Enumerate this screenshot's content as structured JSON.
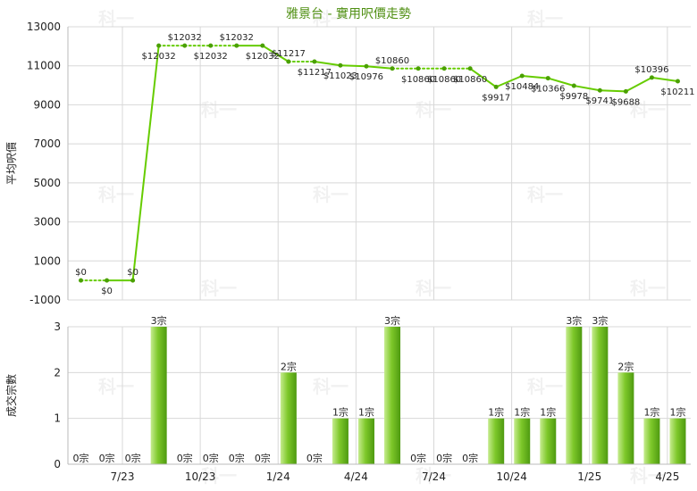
{
  "chart_data": [
    {
      "type": "line",
      "title": "雅景台 - 實用呎價走勢",
      "ylabel": "平均呎價",
      "ylim": [
        -1000,
        13000
      ],
      "yticks": [
        -1000,
        1000,
        3000,
        5000,
        7000,
        9000,
        11000,
        13000
      ],
      "currency_prefix": "$",
      "x_tick_labels": [
        "7/23",
        "10/23",
        "1/24",
        "4/24",
        "7/24",
        "10/24",
        "1/25",
        "4/25"
      ],
      "series": [
        {
          "values": [
            0,
            0,
            0,
            12032,
            12032,
            12032,
            12032,
            12032,
            11217,
            11217,
            11023,
            10976,
            10860,
            10860,
            10860,
            10860,
            9917,
            10484,
            10366,
            9978,
            9741,
            9688,
            10396,
            10211
          ]
        }
      ],
      "carried_forward": [
        false,
        true,
        false,
        false,
        true,
        true,
        true,
        false,
        false,
        true,
        false,
        false,
        false,
        true,
        true,
        true,
        false,
        false,
        false,
        false,
        false,
        false,
        false,
        false
      ],
      "grid": true,
      "colors": {
        "line": "#66cc00",
        "dotted": "#66cc00",
        "marker": "#4aa000"
      }
    },
    {
      "type": "bar",
      "ylabel": "成交宗數",
      "ylim": [
        0,
        3
      ],
      "yticks": [
        0,
        1,
        2,
        3
      ],
      "unit_suffix": "宗",
      "x_tick_labels": [
        "7/23",
        "10/23",
        "1/24",
        "4/24",
        "7/24",
        "10/24",
        "1/25",
        "4/25"
      ],
      "values": [
        0,
        0,
        0,
        3,
        0,
        0,
        0,
        0,
        2,
        0,
        1,
        1,
        3,
        0,
        0,
        0,
        1,
        1,
        1,
        3,
        3,
        2,
        1,
        1
      ],
      "grid": true,
      "colors": {
        "bar": "#7ec82a",
        "bar_light": "#c6ec8f",
        "bar_dark": "#4e9a10"
      }
    }
  ],
  "watermark": "科一"
}
